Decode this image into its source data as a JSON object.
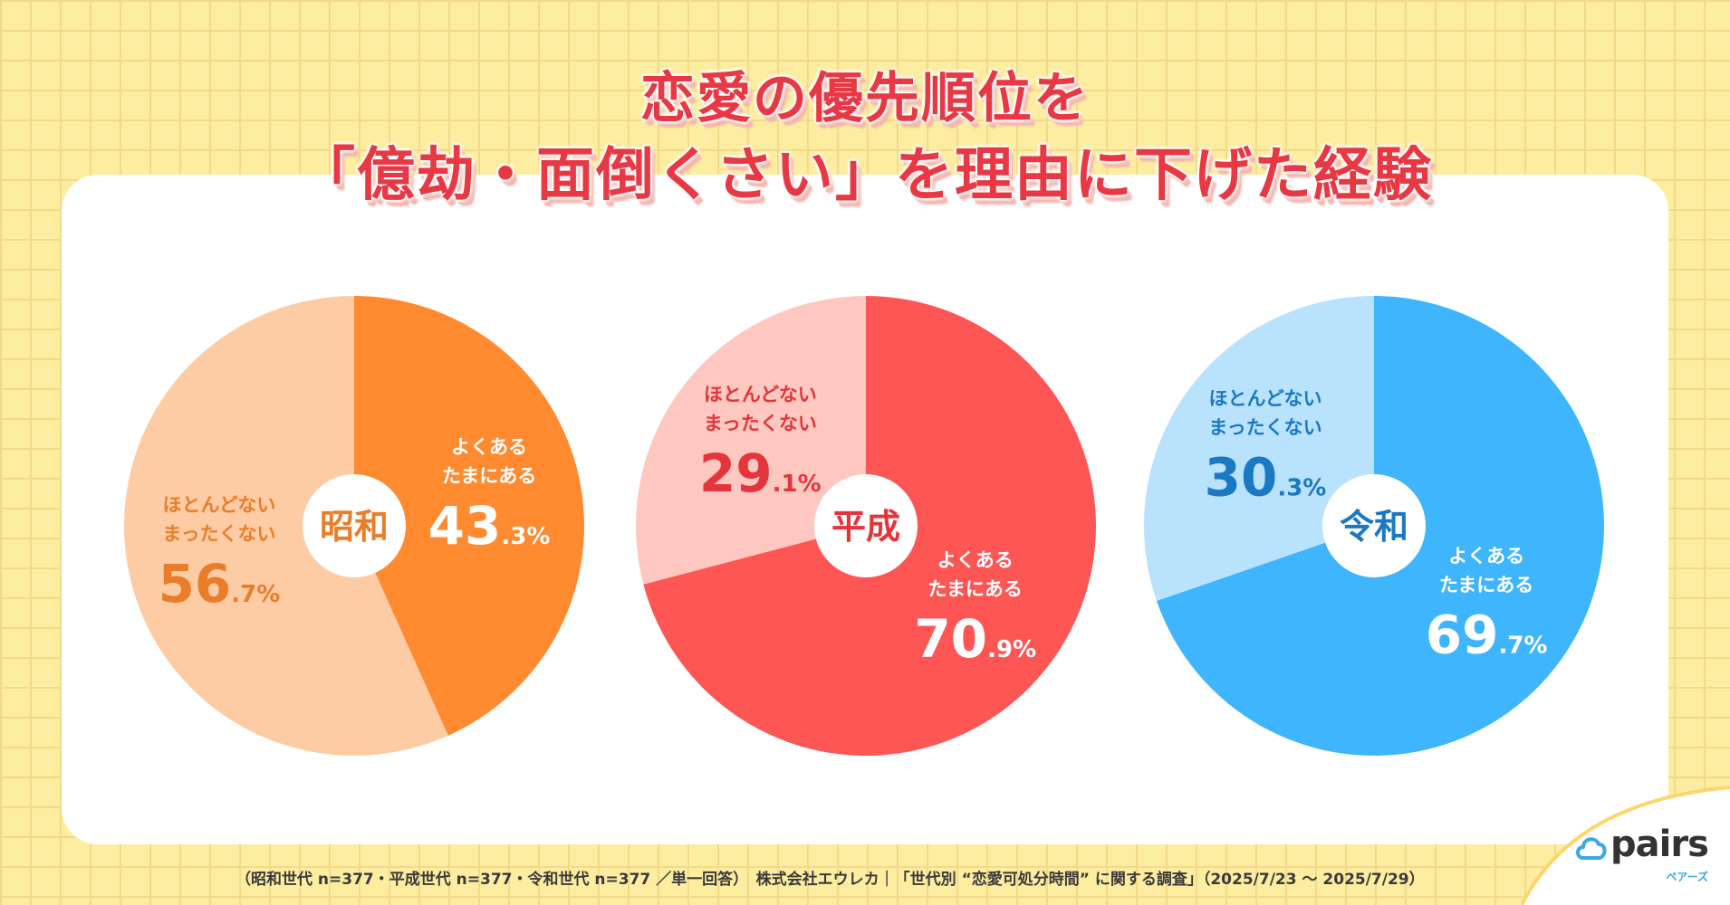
{
  "title": {
    "line1": "恋愛の優先順位を",
    "line2": "「億劫・面倒くさい」を理由に下げた経験"
  },
  "chart_data": [
    {
      "type": "pie",
      "generation": "昭和",
      "center_label": "昭和",
      "slices": [
        {
          "name": "よくある/たまにある",
          "value": 43.3,
          "label_lines": [
            "よくある",
            "たまにある"
          ],
          "int": "43",
          "dec": ".3%",
          "color": "#ff8a30",
          "label_color": "#ffffff"
        },
        {
          "name": "ほとんどない/まったくない",
          "value": 56.7,
          "label_lines": [
            "ほとんどない",
            "まったくない"
          ],
          "int": "56",
          "dec": ".7%",
          "color": "#fecca4",
          "label_color": "#ea7d2a"
        }
      ]
    },
    {
      "type": "pie",
      "generation": "平成",
      "center_label": "平成",
      "slices": [
        {
          "name": "よくある/たまにある",
          "value": 70.9,
          "label_lines": [
            "よくある",
            "たまにある"
          ],
          "int": "70",
          "dec": ".9%",
          "color": "#fe5655",
          "label_color": "#ffffff"
        },
        {
          "name": "ほとんどない/まったくない",
          "value": 29.1,
          "label_lines": [
            "ほとんどない",
            "まったくない"
          ],
          "int": "29",
          "dec": ".1%",
          "color": "#fec8c0",
          "label_color": "#e3353b"
        }
      ]
    },
    {
      "type": "pie",
      "generation": "令和",
      "center_label": "令和",
      "slices": [
        {
          "name": "よくある/たまにある",
          "value": 69.7,
          "label_lines": [
            "よくある",
            "たまにある"
          ],
          "int": "69",
          "dec": ".7%",
          "color": "#3fb5fd",
          "label_color": "#ffffff"
        },
        {
          "name": "ほとんどない/まったくない",
          "value": 30.3,
          "label_lines": [
            "ほとんどない",
            "まったくない"
          ],
          "int": "30",
          "dec": ".3%",
          "color": "#b9e2fd",
          "label_color": "#1b79c3"
        }
      ]
    }
  ],
  "footnote": "（昭和世代 n=377・平成世代 n=377・令和世代 n=377 ／単一回答）　株式会社エウレカ｜「世代別 “恋愛可処分時間” に関する調査」（2025/7/23 ～ 2025/7/29）",
  "logo": {
    "word": "pairs",
    "sub": "ペアーズ"
  },
  "colors": {
    "background": "#fdeda0",
    "title": "#e83844",
    "card": "#ffffff"
  }
}
